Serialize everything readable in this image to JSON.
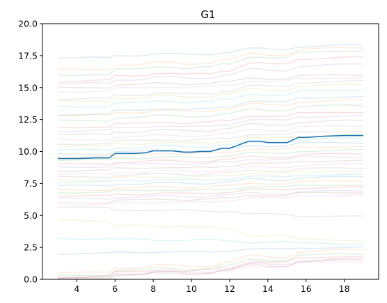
{
  "chart_data": {
    "type": "line",
    "title": "G1",
    "xlabel": "",
    "ylabel": "",
    "xlim": [
      2.2,
      19.8
    ],
    "ylim": [
      0,
      20
    ],
    "xticks": [
      4,
      6,
      8,
      10,
      12,
      14,
      16,
      18
    ],
    "yticks": [
      0.0,
      2.5,
      5.0,
      7.5,
      10.0,
      12.5,
      15.0,
      17.5,
      20.0
    ],
    "ytick_labels": [
      "0.0",
      "2.5",
      "5.0",
      "7.5",
      "10.0",
      "12.5",
      "15.0",
      "17.5",
      "20.0"
    ],
    "grid": false,
    "legend": "none",
    "x": [
      3,
      4,
      5,
      5.7,
      6,
      7,
      7.6,
      8,
      9,
      9.6,
      10,
      10.5,
      11,
      11.6,
      12,
      13,
      13.6,
      14,
      15,
      15.6,
      16,
      17,
      18,
      19
    ],
    "highlight_series": {
      "color": "#1f77b4",
      "values": [
        9.45,
        9.45,
        9.5,
        9.5,
        9.85,
        9.85,
        9.9,
        10.05,
        10.05,
        9.95,
        9.95,
        10.0,
        10.0,
        10.25,
        10.25,
        10.8,
        10.8,
        10.7,
        10.7,
        11.1,
        11.1,
        11.2,
        11.25,
        11.25
      ]
    },
    "background_series": {
      "opacity": 0.15,
      "colors": [
        "#1f77b4",
        "#ff7f0e",
        "#2ca02c",
        "#d62728",
        "#9467bd",
        "#8c564b",
        "#e377c2",
        "#7f7f7f",
        "#bcbd22",
        "#17becf"
      ],
      "starts": [
        17.3,
        16.4,
        16.0,
        15.5,
        15.3,
        15.0,
        14.7,
        14.1,
        13.9,
        13.5,
        12.9,
        12.8,
        12.4,
        11.9,
        11.6,
        11.3,
        10.9,
        10.6,
        10.4,
        10.1,
        9.8,
        9.6,
        9.3,
        9.0,
        8.8,
        8.5,
        8.2,
        8.0,
        7.8,
        7.6,
        7.3,
        7.0,
        6.8,
        6.5,
        6.3,
        6.0,
        5.8,
        5.6,
        4.6,
        3.2,
        2.0,
        0.5,
        0.3,
        0.2,
        0.1,
        0.05,
        0.02
      ],
      "ends": [
        18.3,
        18.1,
        17.9,
        17.4,
        16.8,
        16.0,
        15.8,
        15.5,
        15.2,
        14.8,
        14.3,
        14.0,
        13.6,
        13.1,
        12.8,
        12.4,
        12.0,
        11.6,
        11.3,
        11.0,
        10.7,
        10.4,
        10.1,
        9.8,
        9.6,
        9.3,
        9.0,
        8.7,
        8.5,
        8.2,
        8.0,
        7.7,
        7.4,
        7.2,
        6.9,
        6.8,
        6.6,
        4.9,
        3.0,
        2.8,
        2.5,
        2.3,
        2.0,
        1.8,
        1.6,
        1.5,
        1.4
      ]
    }
  }
}
